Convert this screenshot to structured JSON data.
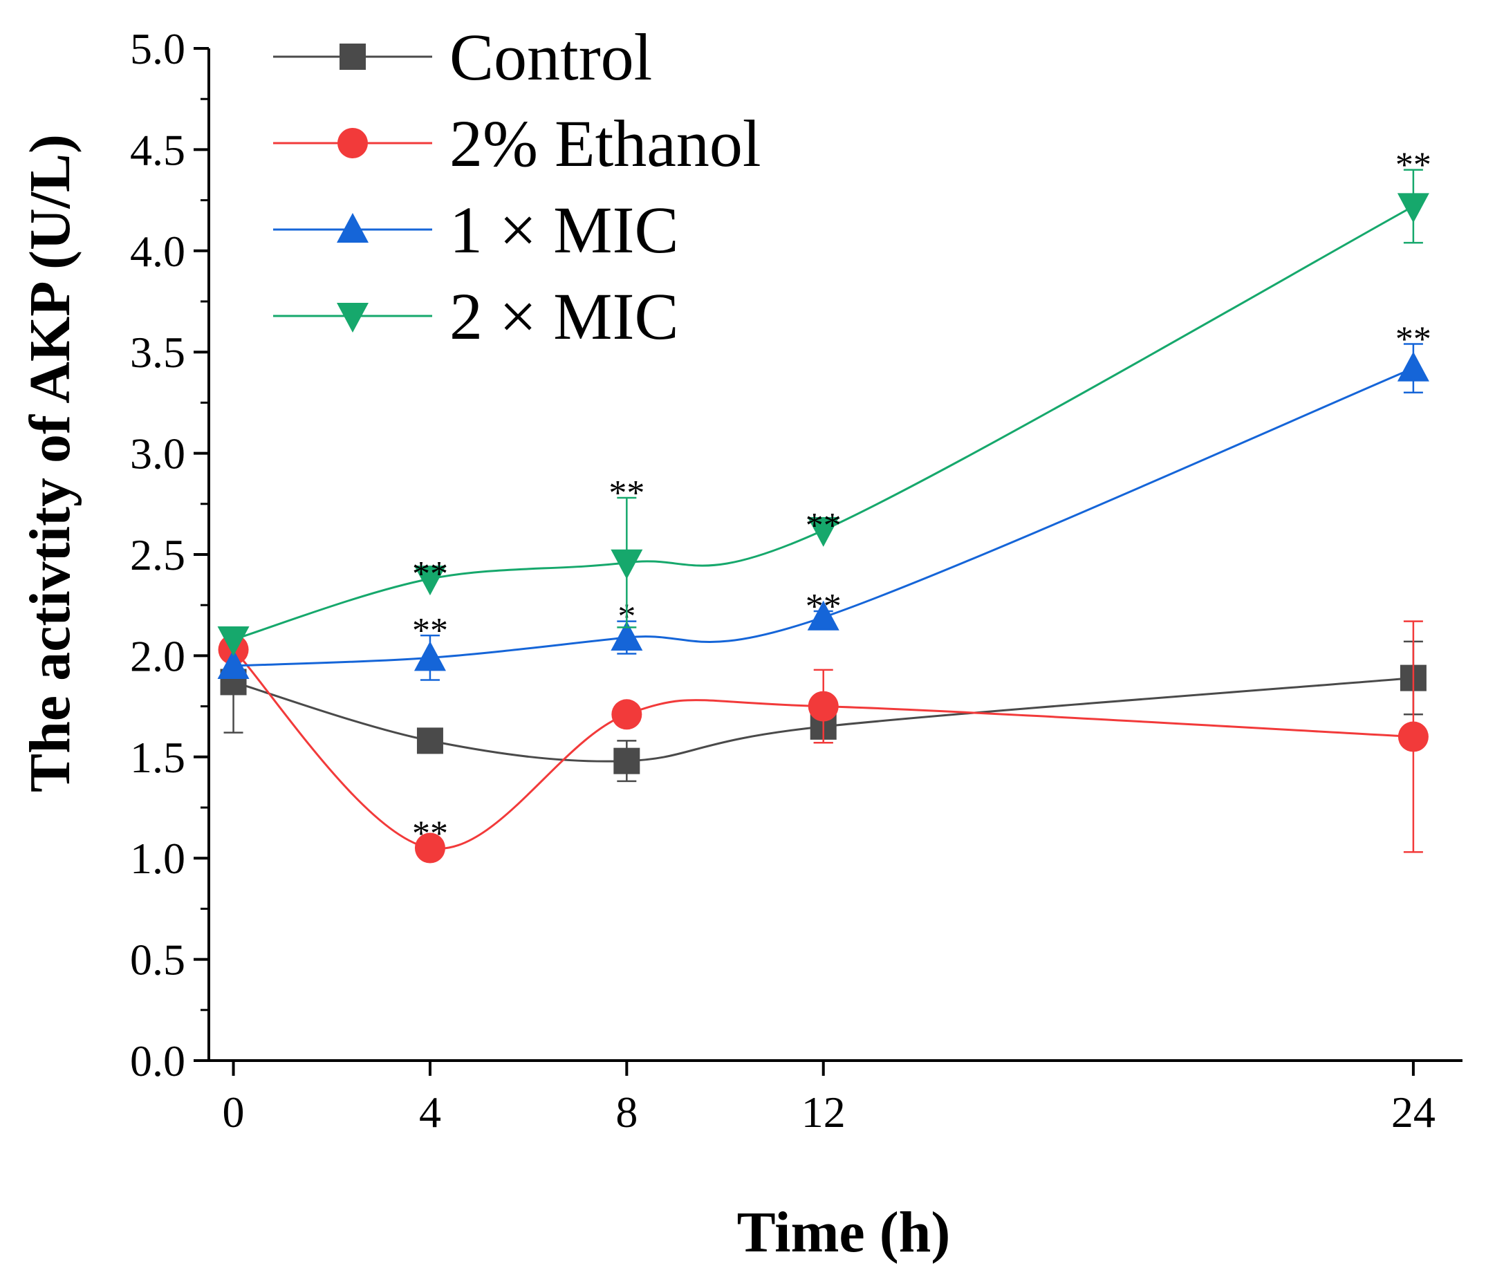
{
  "chart_data": {
    "type": "line",
    "title": "",
    "xlabel": "Time (h)",
    "ylabel": "The activtity of AKP (U/L)",
    "x": [
      0,
      4,
      8,
      12,
      24
    ],
    "xticks": [
      "0",
      "4",
      "8",
      "12",
      "24"
    ],
    "xlim": [
      -0.5,
      25
    ],
    "yticks": [
      "0.0",
      "0.5",
      "1.0",
      "1.5",
      "2.0",
      "2.5",
      "3.0",
      "3.5",
      "4.0",
      "4.5",
      "5.0"
    ],
    "ylim": [
      0,
      5
    ],
    "legend_position": "top-left",
    "series": [
      {
        "name": "Control",
        "color": "#4a4a4a",
        "marker": "square",
        "values": [
          1.87,
          1.58,
          1.48,
          1.65,
          1.89
        ],
        "errors": [
          0.25,
          0.06,
          0.1,
          0.08,
          0.18
        ],
        "significance": [
          "",
          "",
          "",
          "",
          ""
        ]
      },
      {
        "name": "2% Ethanol",
        "color": "#f23a3a",
        "marker": "circle",
        "values": [
          2.03,
          1.05,
          1.71,
          1.75,
          1.6
        ],
        "errors": [
          0.1,
          0.0,
          0.0,
          0.18,
          0.57
        ],
        "significance": [
          "",
          "**",
          "",
          "",
          ""
        ]
      },
      {
        "name": "1 × MIC",
        "color": "#1565d8",
        "marker": "triangle-up",
        "values": [
          1.95,
          1.99,
          2.09,
          2.19,
          3.42
        ],
        "errors": [
          0.0,
          0.11,
          0.08,
          0.03,
          0.12
        ],
        "significance": [
          "",
          "**",
          "*",
          "**",
          "**"
        ]
      },
      {
        "name": "2 × MIC",
        "color": "#16a86c",
        "marker": "triangle-down",
        "values": [
          2.08,
          2.38,
          2.46,
          2.62,
          4.22
        ],
        "errors": [
          0.0,
          0.0,
          0.32,
          0.0,
          0.18
        ],
        "significance": [
          "",
          "**",
          "**",
          "**",
          "**"
        ]
      }
    ]
  }
}
